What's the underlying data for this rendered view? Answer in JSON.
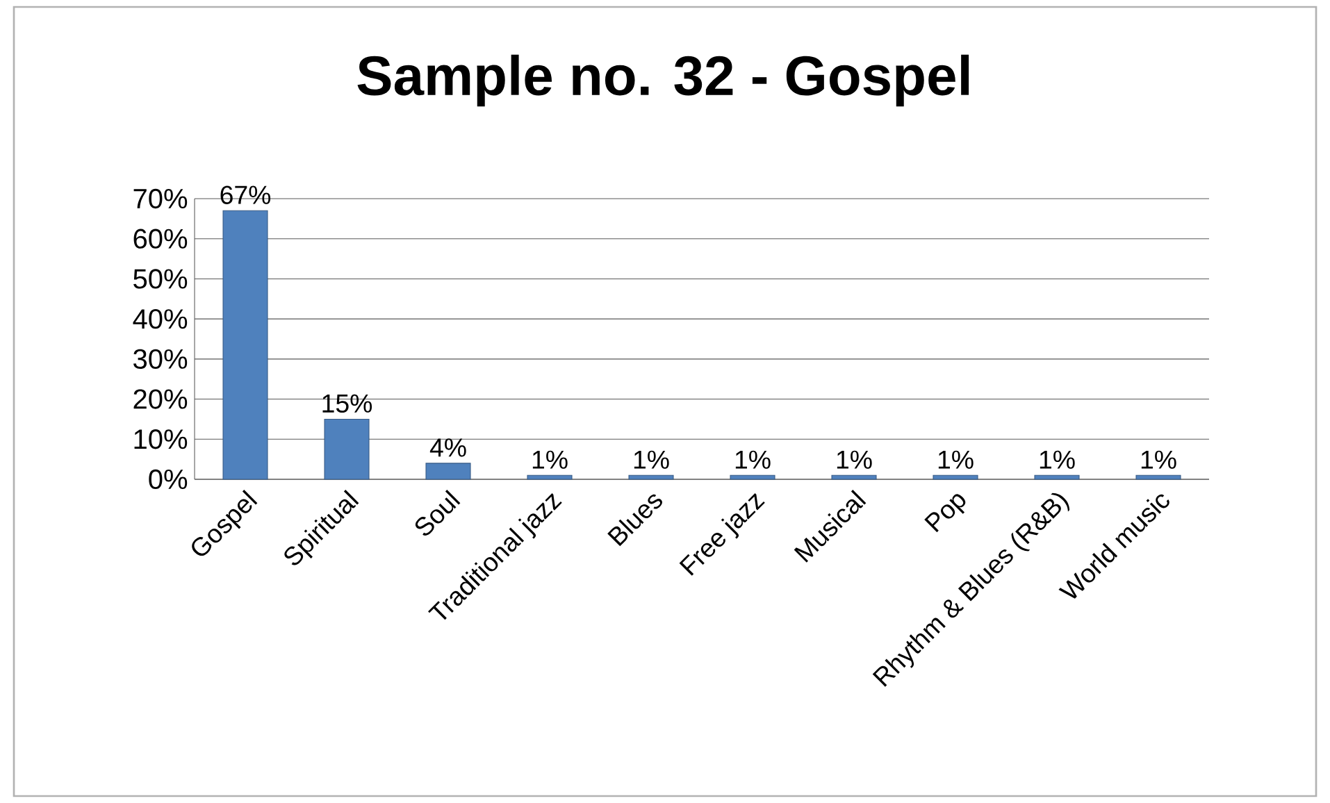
{
  "chart_data": {
    "type": "bar",
    "title": "Sample no. 32 - Gospel",
    "categories": [
      "Gospel",
      "Spiritual",
      "Soul",
      "Traditional jazz",
      "Blues",
      "Free jazz",
      "Musical",
      "Pop",
      "Rhythm & Blues (R&B)",
      "World music"
    ],
    "values": [
      67,
      15,
      4,
      1,
      1,
      1,
      1,
      1,
      1,
      1
    ],
    "value_labels": [
      "67%",
      "15%",
      "4%",
      "1%",
      "1%",
      "1%",
      "1%",
      "1%",
      "1%",
      "1%"
    ],
    "color": "#4f81bd",
    "ylim": [
      0,
      70
    ],
    "yticks": [
      {
        "value": 0,
        "label": "0%"
      },
      {
        "value": 10,
        "label": "10%"
      },
      {
        "value": 20,
        "label": "20%"
      },
      {
        "value": 30,
        "label": "30%"
      },
      {
        "value": 40,
        "label": "40%"
      },
      {
        "value": 50,
        "label": "50%"
      },
      {
        "value": 60,
        "label": "60%"
      },
      {
        "value": 70,
        "label": "70%"
      }
    ],
    "grid": "y"
  }
}
